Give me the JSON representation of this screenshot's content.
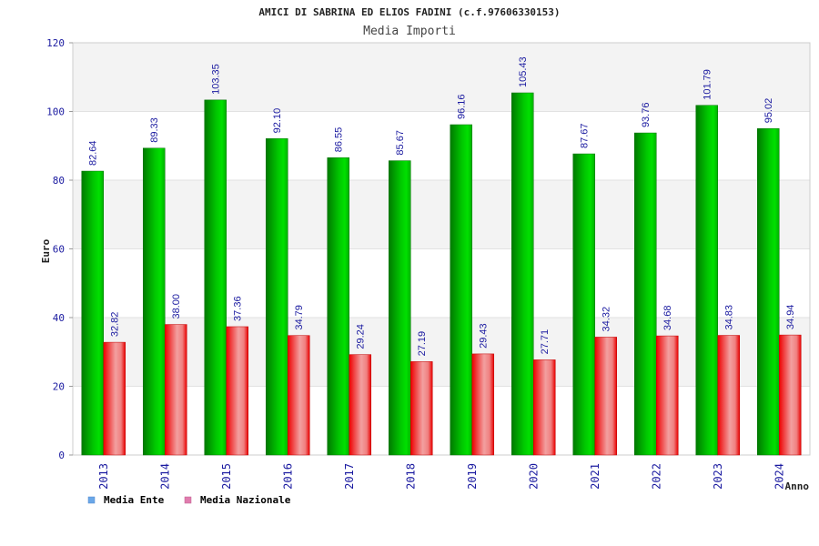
{
  "chart_data": {
    "type": "bar",
    "title": "AMICI DI SABRINA ED ELIOS FADINI (c.f.97606330153)",
    "subtitle": "Media Importi",
    "xlabel": "Anno",
    "ylabel": "Euro",
    "ylim": [
      0,
      120
    ],
    "yticks": [
      0,
      20,
      40,
      60,
      80,
      100,
      120
    ],
    "categories": [
      "2013",
      "2014",
      "2015",
      "2016",
      "2017",
      "2018",
      "2019",
      "2020",
      "2021",
      "2022",
      "2023",
      "2024"
    ],
    "series": [
      {
        "name": "Media Ente",
        "values": [
          82.64,
          89.33,
          103.35,
          92.1,
          86.55,
          85.67,
          96.16,
          105.43,
          87.67,
          93.76,
          101.79,
          95.02
        ],
        "labels": [
          "82.64",
          "89.33",
          "103.35",
          "92.10",
          "86.55",
          "85.67",
          "96.16",
          "105.43",
          "87.67",
          "93.76",
          "101.79",
          "95.02"
        ]
      },
      {
        "name": "Media Nazionale",
        "values": [
          32.82,
          38.0,
          37.36,
          34.79,
          29.24,
          27.19,
          29.43,
          27.71,
          34.32,
          34.68,
          34.83,
          34.94
        ],
        "labels": [
          "32.82",
          "38.00",
          "37.36",
          "34.79",
          "29.24",
          "27.19",
          "29.43",
          "27.71",
          "34.32",
          "34.68",
          "34.83",
          "34.94"
        ]
      }
    ],
    "legend": {
      "placement": "bottom-left",
      "items": [
        {
          "label": "Media Ente",
          "color": "#6aa7e8"
        },
        {
          "label": "Media Nazionale",
          "color": "#e07cae"
        }
      ]
    },
    "grid": true
  }
}
